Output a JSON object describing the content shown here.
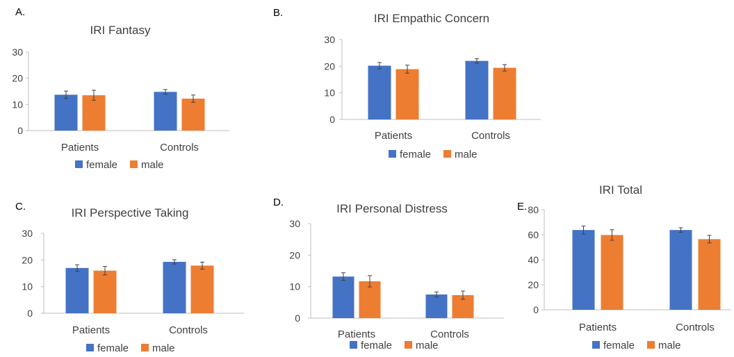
{
  "colors": {
    "female": "#4472C4",
    "male": "#ED7D31",
    "axis": "#BFBFBF",
    "text": "#404040",
    "error": "#404040"
  },
  "chart_data": [
    {
      "id": "A",
      "panel_label": "A.",
      "type": "bar",
      "title": "IRI Fantasy",
      "categories": [
        "Patients",
        "Controls"
      ],
      "series": [
        {
          "name": "female",
          "values": [
            13.7,
            14.8
          ],
          "errors": [
            1.4,
            0.9
          ]
        },
        {
          "name": "male",
          "values": [
            13.5,
            12.2
          ],
          "errors": [
            1.9,
            1.4
          ]
        }
      ],
      "ylim": [
        0,
        30
      ],
      "yticks": [
        0,
        10,
        20,
        30
      ],
      "legend": "bottom",
      "grid": false
    },
    {
      "id": "B",
      "panel_label": "B.",
      "type": "bar",
      "title": "IRI Empathic Concern",
      "categories": [
        "Patients",
        "Controls"
      ],
      "series": [
        {
          "name": "female",
          "values": [
            20.2,
            22.0
          ],
          "errors": [
            1.2,
            0.8
          ]
        },
        {
          "name": "male",
          "values": [
            18.9,
            19.4
          ],
          "errors": [
            1.5,
            1.2
          ]
        }
      ],
      "ylim": [
        0,
        30
      ],
      "yticks": [
        0,
        10,
        20,
        30
      ],
      "legend": "bottom",
      "grid": false
    },
    {
      "id": "C",
      "panel_label": "C.",
      "type": "bar",
      "title": "IRI Perspective Taking",
      "categories": [
        "Patients",
        "Controls"
      ],
      "series": [
        {
          "name": "female",
          "values": [
            17.0,
            19.3
          ],
          "errors": [
            1.2,
            0.8
          ]
        },
        {
          "name": "male",
          "values": [
            16.0,
            17.9
          ],
          "errors": [
            1.6,
            1.3
          ]
        }
      ],
      "ylim": [
        0,
        30
      ],
      "yticks": [
        0,
        10,
        20,
        30
      ],
      "legend": "bottom",
      "grid": false
    },
    {
      "id": "D",
      "panel_label": "D.",
      "type": "bar",
      "title": "IRI Personal Distress",
      "categories": [
        "Patients",
        "Controls"
      ],
      "series": [
        {
          "name": "female",
          "values": [
            13.2,
            7.5
          ],
          "errors": [
            1.2,
            0.8
          ]
        },
        {
          "name": "male",
          "values": [
            11.7,
            7.3
          ],
          "errors": [
            1.8,
            1.3
          ]
        }
      ],
      "ylim": [
        0,
        30
      ],
      "yticks": [
        0,
        10,
        20,
        30
      ],
      "legend": "bottom",
      "grid": false
    },
    {
      "id": "E",
      "panel_label": "E.",
      "type": "bar",
      "title": "IRI Total",
      "categories": [
        "Patients",
        "Controls"
      ],
      "series": [
        {
          "name": "female",
          "values": [
            63.8,
            63.8
          ],
          "errors": [
            3.2,
            1.8
          ]
        },
        {
          "name": "male",
          "values": [
            59.8,
            56.5
          ],
          "errors": [
            4.2,
            3.0
          ]
        }
      ],
      "ylim": [
        0,
        80
      ],
      "yticks": [
        0,
        20,
        40,
        60,
        80
      ],
      "legend": "bottom",
      "grid": false
    }
  ]
}
